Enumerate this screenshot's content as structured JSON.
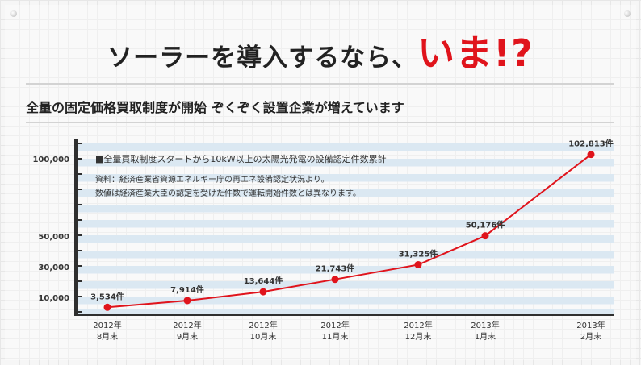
{
  "header": {
    "headline_main": "ソーラーを導入するなら、",
    "headline_accent": "いま!?",
    "subtitle": "全量の固定価格買取制度が開始 ぞくぞく設置企業が増えています"
  },
  "colors": {
    "accent": "#e0141c",
    "band": "#dbe8f2",
    "axis": "#2f2f2f"
  },
  "chart_data": {
    "type": "line",
    "title": "■全量買取制度スタートから10kW以上の太陽光発電の設備認定件数累計",
    "notes": [
      "資料：経済産業省資源エネルギー庁の再エネ設備認定状況より。",
      "数値は経済産業大臣の認定を受けた件数で運転開始件数とは異なります。"
    ],
    "categories": [
      [
        "2012年",
        "8月末"
      ],
      [
        "2012年",
        "9月末"
      ],
      [
        "2012年",
        "10月末"
      ],
      [
        "2012年",
        "11月末"
      ],
      [
        "2012年",
        "12月末"
      ],
      [
        "2013年",
        "1月末"
      ],
      [
        "2013年",
        "2月末"
      ]
    ],
    "values": [
      3534,
      7914,
      13644,
      21743,
      31325,
      50176,
      102813
    ],
    "data_labels": [
      "3,534件",
      "7,914件",
      "13,644件",
      "21,743件",
      "31,325件",
      "50,176件",
      "102,813件"
    ],
    "y_ticks": [
      {
        "value": 10000,
        "label": "10,000"
      },
      {
        "value": 30000,
        "label": "30,000"
      },
      {
        "value": 50000,
        "label": "50,000"
      },
      {
        "value": 100000,
        "label": "100,000"
      }
    ],
    "xlabel": "",
    "ylabel": "",
    "ylim": [
      0,
      106000
    ],
    "y_scale": "piecewise (compressed between 50,000 and 100,000)",
    "grid": "horizontal banded stripes",
    "legend": "none"
  }
}
